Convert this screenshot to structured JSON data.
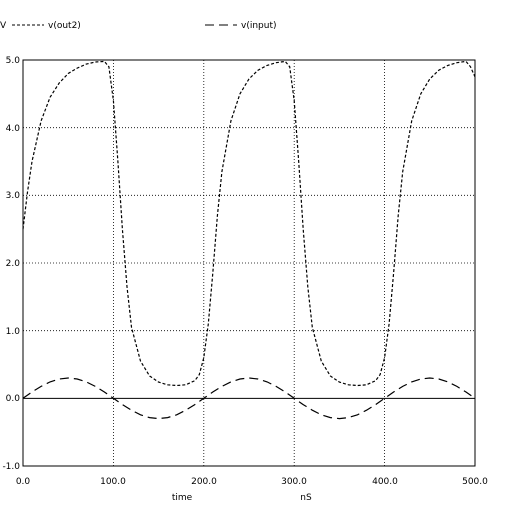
{
  "chart_data": {
    "type": "line",
    "ylabel_unit": "V",
    "xlabel": "time",
    "xunit": "nS",
    "xlim": [
      0,
      500
    ],
    "ylim": [
      -1,
      5
    ],
    "x_ticks": [
      "0.0",
      "100.0",
      "200.0",
      "300.0",
      "400.0",
      "500.0"
    ],
    "y_ticks": [
      "-1.0",
      "0.0",
      "1.0",
      "2.0",
      "3.0",
      "4.0",
      "5.0"
    ],
    "grid": true,
    "legend_position": "top",
    "series": [
      {
        "name": "v(out2)",
        "dash": "3 2",
        "x": [
          0,
          5,
          10,
          20,
          30,
          40,
          50,
          60,
          70,
          80,
          90,
          95,
          100,
          105,
          110,
          115,
          120,
          130,
          140,
          150,
          160,
          170,
          180,
          190,
          195,
          200,
          205,
          210,
          215,
          220,
          230,
          240,
          250,
          260,
          270,
          280,
          290,
          295,
          300,
          305,
          310,
          315,
          320,
          330,
          340,
          350,
          360,
          370,
          380,
          390,
          395,
          400,
          405,
          410,
          415,
          420,
          430,
          440,
          450,
          460,
          470,
          480,
          490,
          495,
          500
        ],
        "y": [
          2.5,
          3.05,
          3.5,
          4.1,
          4.45,
          4.66,
          4.8,
          4.88,
          4.94,
          4.97,
          4.98,
          4.9,
          4.4,
          3.5,
          2.5,
          1.65,
          1.05,
          0.55,
          0.33,
          0.24,
          0.2,
          0.19,
          0.2,
          0.26,
          0.35,
          0.6,
          1.1,
          1.85,
          2.7,
          3.35,
          4.1,
          4.5,
          4.72,
          4.85,
          4.92,
          4.96,
          4.98,
          4.9,
          4.4,
          3.5,
          2.5,
          1.65,
          1.05,
          0.55,
          0.33,
          0.24,
          0.2,
          0.19,
          0.2,
          0.26,
          0.35,
          0.6,
          1.1,
          1.85,
          2.7,
          3.35,
          4.1,
          4.5,
          4.72,
          4.85,
          4.92,
          4.96,
          4.98,
          4.9,
          4.75
        ]
      },
      {
        "name": "v(input)",
        "dash": "9 5",
        "x": [
          0,
          10,
          20,
          30,
          40,
          50,
          60,
          70,
          80,
          90,
          100,
          110,
          120,
          130,
          140,
          150,
          160,
          170,
          180,
          190,
          200,
          210,
          220,
          230,
          240,
          250,
          260,
          270,
          280,
          290,
          300,
          310,
          320,
          330,
          340,
          350,
          360,
          370,
          380,
          390,
          400,
          410,
          420,
          430,
          440,
          450,
          460,
          470,
          480,
          490,
          500
        ],
        "y": [
          0.0,
          0.093,
          0.176,
          0.243,
          0.285,
          0.3,
          0.285,
          0.243,
          0.176,
          0.093,
          0.0,
          -0.093,
          -0.176,
          -0.243,
          -0.285,
          -0.3,
          -0.285,
          -0.243,
          -0.176,
          -0.093,
          0.0,
          0.093,
          0.176,
          0.243,
          0.285,
          0.3,
          0.285,
          0.243,
          0.176,
          0.093,
          0.0,
          -0.093,
          -0.176,
          -0.243,
          -0.285,
          -0.3,
          -0.285,
          -0.243,
          -0.176,
          -0.093,
          0.0,
          0.093,
          0.176,
          0.243,
          0.285,
          0.3,
          0.285,
          0.243,
          0.176,
          0.093,
          0.0
        ]
      }
    ]
  }
}
